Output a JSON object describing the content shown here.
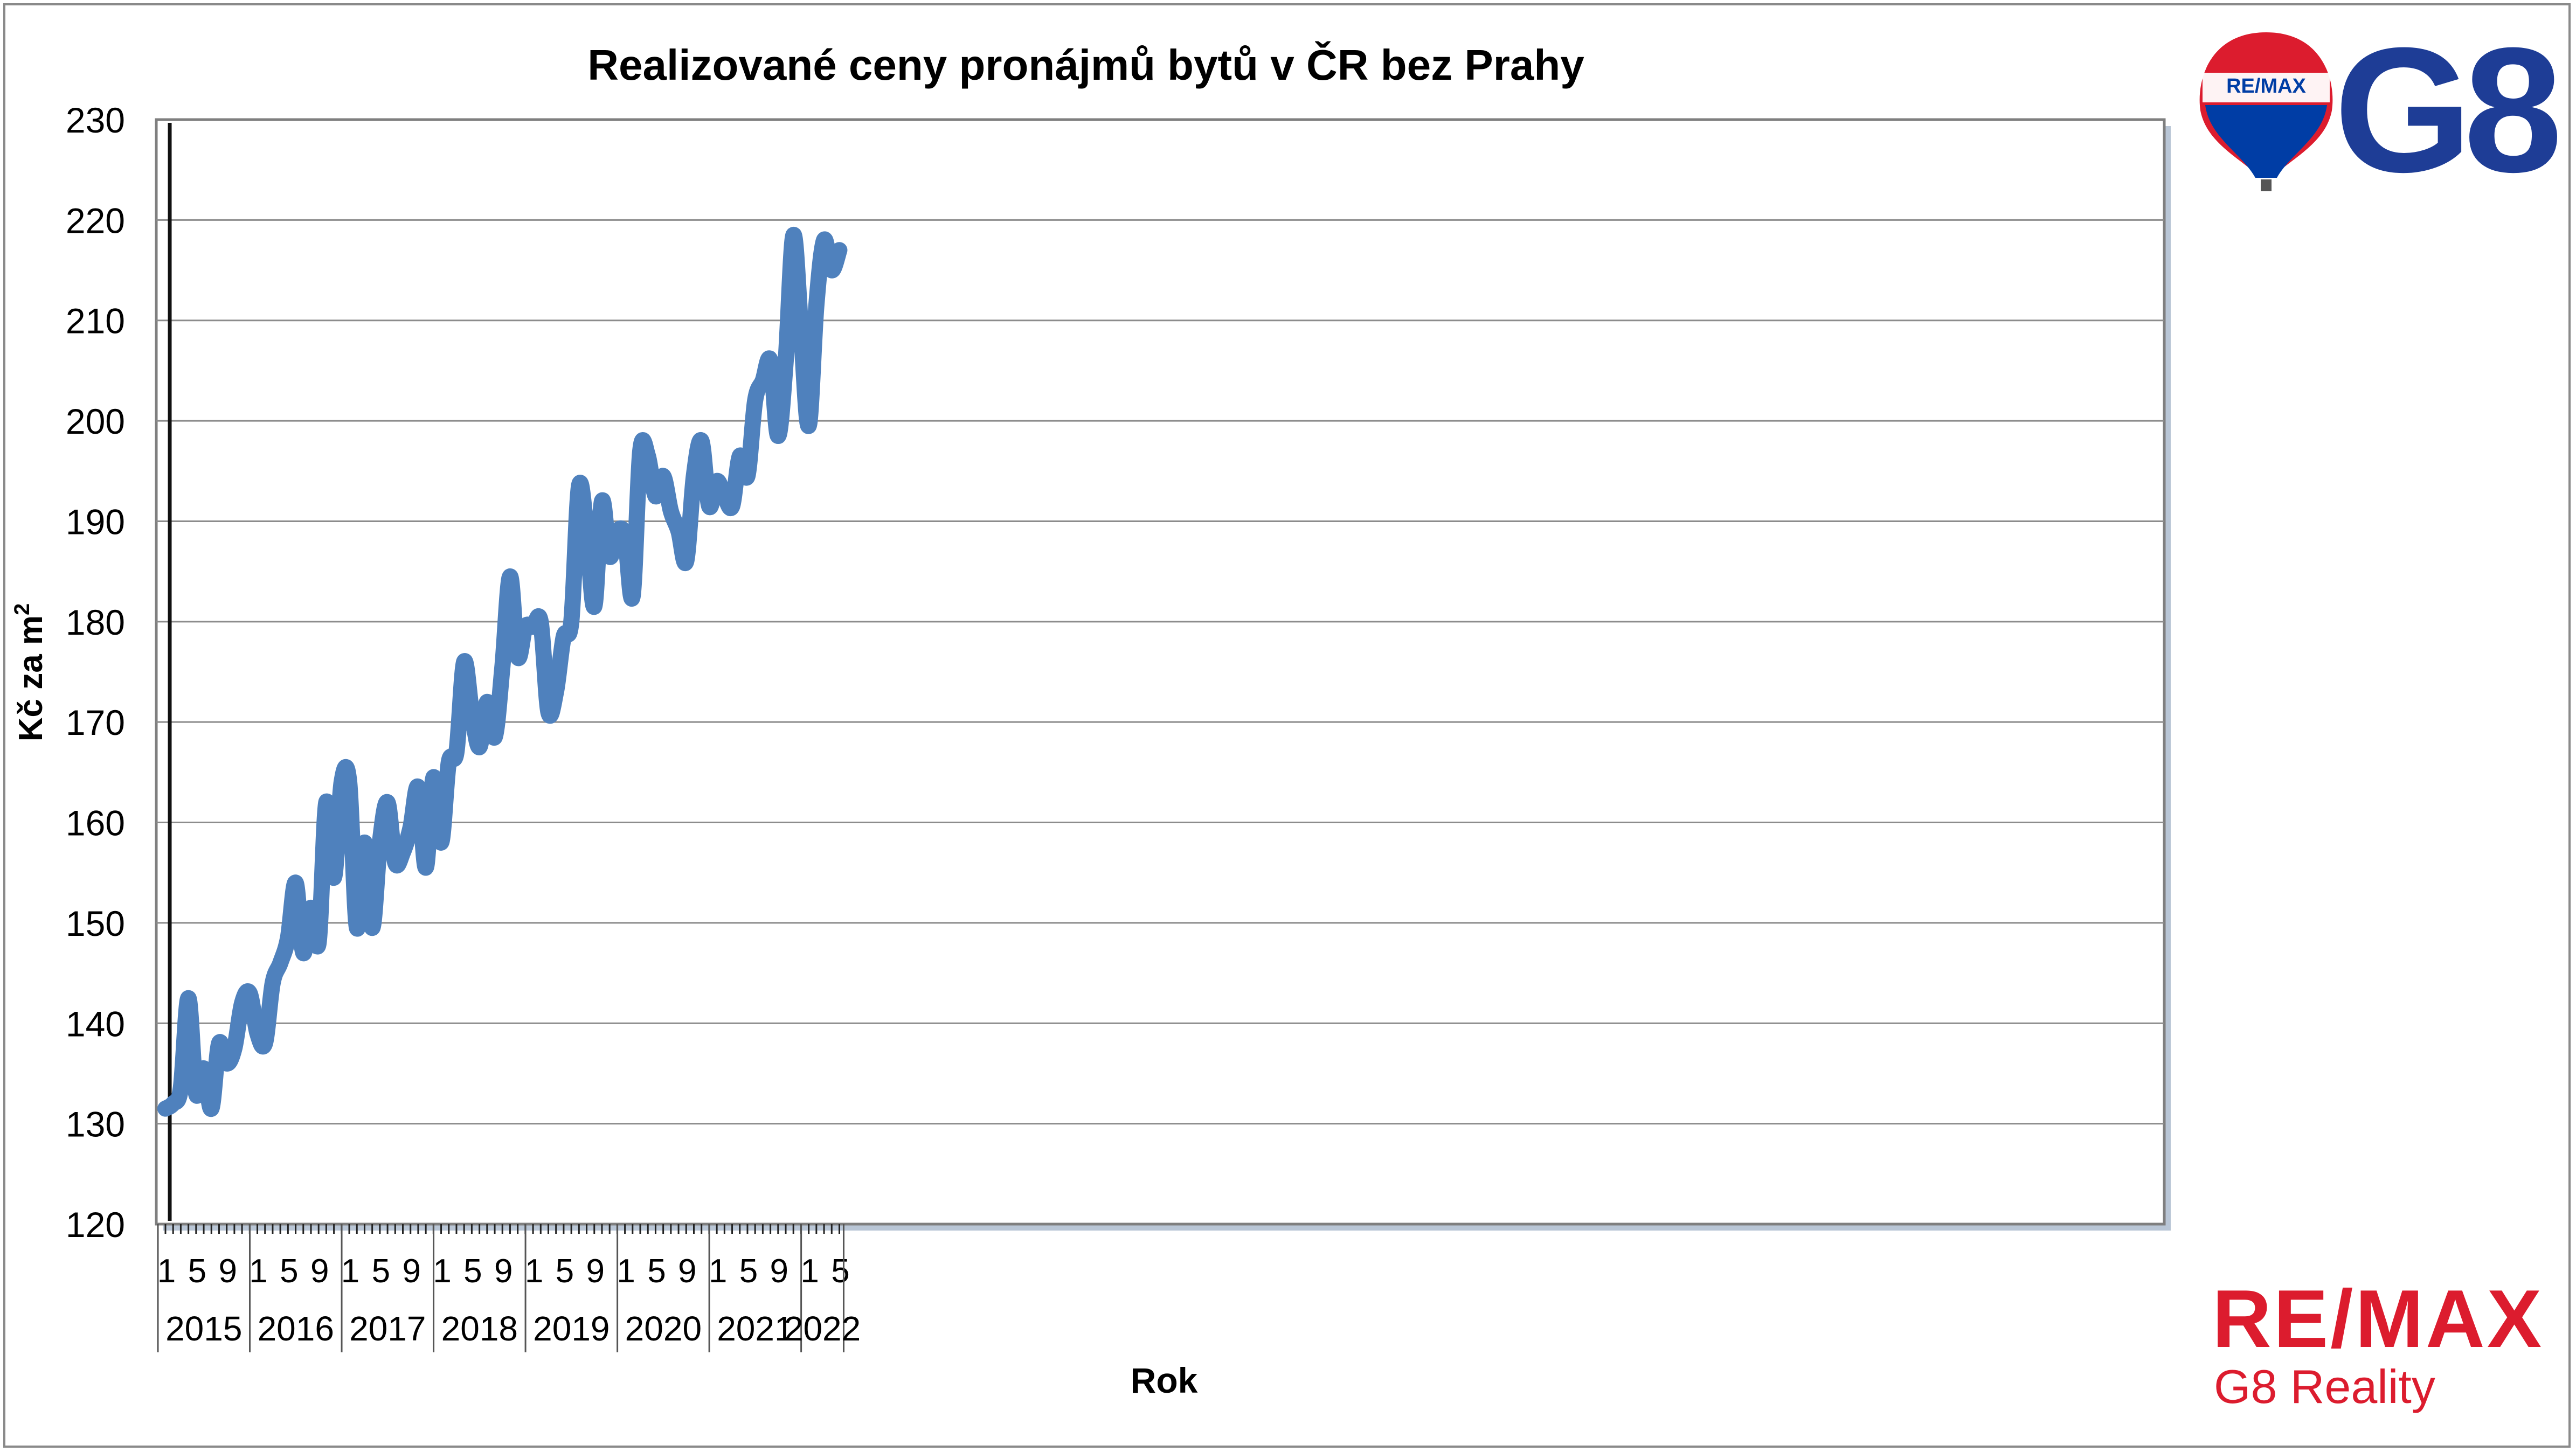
{
  "chart_data": {
    "type": "line",
    "title": "Realizované ceny pronájmů bytů v ČR bez Prahy",
    "ylabel_main": "Kč za m",
    "ylabel_sup": "2",
    "xlabel": "Rok",
    "ylim": [
      120,
      230
    ],
    "yticks": [
      120,
      130,
      140,
      150,
      160,
      170,
      180,
      190,
      200,
      210,
      220,
      230
    ],
    "grid": true,
    "legend": "none",
    "line_color": "#4f81bd",
    "years": [
      "2015",
      "2016",
      "2017",
      "2018",
      "2019",
      "2020",
      "2021",
      "2022"
    ],
    "month_tick_labels": [
      "1",
      "5",
      "9"
    ],
    "series": [
      {
        "values": [
          131.5,
          132.0,
          133.5,
          142.5,
          133.0,
          135.5,
          131.5,
          138.0,
          136.0,
          137.5,
          142.0,
          143.0,
          139.0,
          138.0,
          144.0,
          146.0,
          148.5,
          154.0,
          147.0,
          151.5,
          148.0,
          162.0,
          154.5,
          164.0,
          164.0,
          149.5,
          158.0,
          149.5,
          158.0,
          162.0,
          156.0,
          157.0,
          159.5,
          163.5,
          155.5,
          164.5,
          158.0,
          166.0,
          167.0,
          176.0,
          171.0,
          167.5,
          172.0,
          168.5,
          175.5,
          184.5,
          176.5,
          179.5,
          179.5,
          180.0,
          171.0,
          173.0,
          178.5,
          180.0,
          193.5,
          189.0,
          181.5,
          192.0,
          186.5,
          189.0,
          188.5,
          182.5,
          197.0,
          196.5,
          192.5,
          194.5,
          191.0,
          189.0,
          186.0,
          194.5,
          198.0,
          191.5,
          194.0,
          192.5,
          191.5,
          196.5,
          194.5,
          202.0,
          204.0,
          206.0,
          198.5,
          206.0,
          218.5,
          209.0,
          199.5,
          211.5,
          218.0,
          215.0,
          217.0
        ]
      }
    ]
  },
  "logos": {
    "balloon_label": "RE/MAX",
    "g8_text": "G8",
    "remax_text": "RE/MAX",
    "reality_text": "G8 Reality"
  },
  "colors": {
    "remax_red": "#dc1c2e",
    "remax_blue": "#003da5",
    "g8_blue": "#1e3d96",
    "line_blue": "#4f81bd"
  }
}
